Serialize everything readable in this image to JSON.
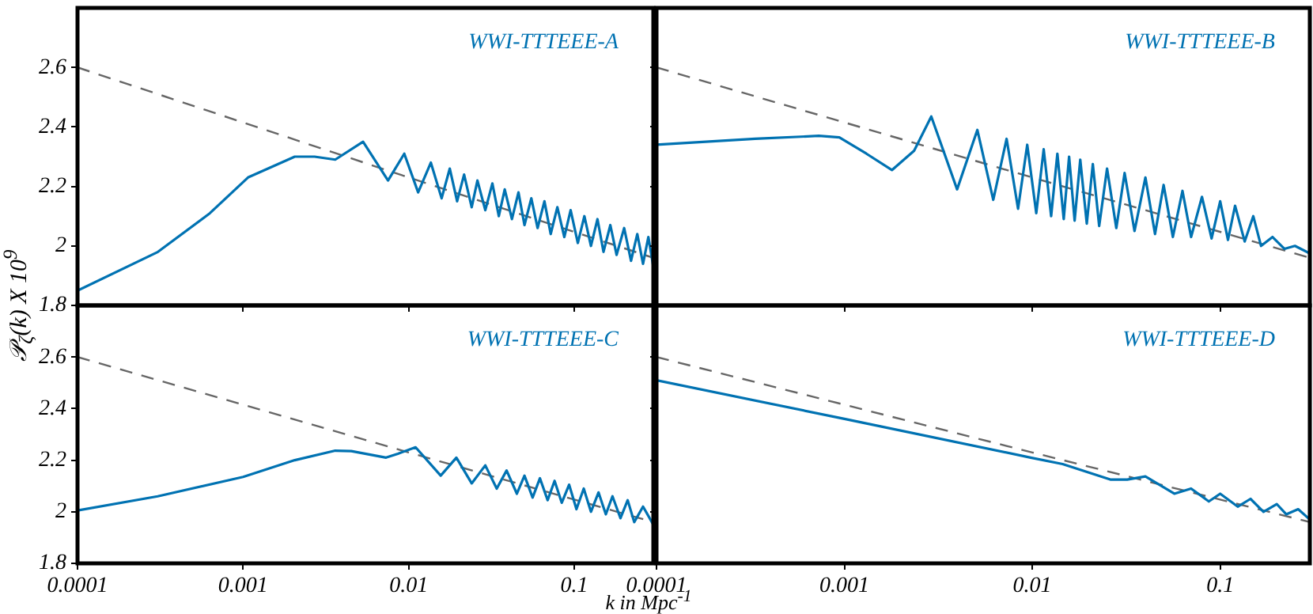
{
  "chart_data": [
    {
      "type": "line",
      "ylabel": "𝒫$_{ζ}$(k) X 10$^{9}$",
      "log": "x",
      "xlim": [
        0.0001,
        0.3
      ],
      "ylim": [
        1.8,
        2.8
      ],
      "xticks": [
        0.0001,
        0.001,
        0.01,
        0.1
      ],
      "yticks": [
        1.8,
        2,
        2.2,
        2.4,
        2.6
      ],
      "tick_labels": "y",
      "series": [
        {
          "name": "WWI-TTTEEE-A",
          "color": "#0072b2",
          "x": [
            0.0001,
            0.000306,
            0.00063,
            0.00107,
            0.00205,
            0.0027,
            0.0036,
            0.0053,
            0.0075,
            0.0094,
            0.0114,
            0.0136,
            0.0158,
            0.0177,
            0.0196,
            0.0216,
            0.024,
            0.026,
            0.029,
            0.032,
            0.035,
            0.038,
            0.042,
            0.046,
            0.05,
            0.055,
            0.06,
            0.066,
            0.072,
            0.079,
            0.087,
            0.095,
            0.105,
            0.115,
            0.126,
            0.138,
            0.15,
            0.165,
            0.18,
            0.2,
            0.22,
            0.24,
            0.26,
            0.28,
            0.3
          ],
          "values": [
            1.85,
            1.98,
            2.11,
            2.23,
            2.3,
            2.3,
            2.29,
            2.35,
            2.22,
            2.31,
            2.18,
            2.28,
            2.16,
            2.26,
            2.15,
            2.24,
            2.13,
            2.22,
            2.12,
            2.21,
            2.1,
            2.19,
            2.09,
            2.18,
            2.07,
            2.16,
            2.06,
            2.15,
            2.04,
            2.13,
            2.03,
            2.12,
            2.01,
            2.1,
            2,
            2.09,
            1.98,
            2.07,
            1.97,
            2.06,
            1.95,
            2.04,
            1.94,
            2.03,
            1.93
          ]
        },
        {
          "color": "#666666",
          "line_style": "dashed",
          "x": [
            0.0001,
            0.01,
            0.3
          ],
          "values": [
            2.6,
            2.23,
            1.96
          ]
        }
      ]
    },
    {
      "type": "line",
      "log": "x",
      "xlim": [
        0.0001,
        0.3
      ],
      "ylim": [
        1.8,
        2.8
      ],
      "xticks": [
        0.0001,
        0.001,
        0.01,
        0.1
      ],
      "yticks": [
        1.8,
        2,
        2.2,
        2.4,
        2.6
      ],
      "tick_labels": false,
      "series": [
        {
          "name": "WWI-TTTEEE-B",
          "color": "#0072b2",
          "x": [
            0.0001,
            0.000335,
            0.00073,
            0.00094,
            0.00131,
            0.00179,
            0.00235,
            0.0029,
            0.00398,
            0.0051,
            0.0062,
            0.0073,
            0.0084,
            0.0094,
            0.0105,
            0.0115,
            0.0126,
            0.0136,
            0.0147,
            0.0157,
            0.0168,
            0.018,
            0.0195,
            0.021,
            0.0227,
            0.025,
            0.028,
            0.031,
            0.035,
            0.04,
            0.045,
            0.05,
            0.056,
            0.063,
            0.07,
            0.08,
            0.09,
            0.1,
            0.11,
            0.12,
            0.135,
            0.15,
            0.165,
            0.19,
            0.22,
            0.25,
            0.3
          ],
          "values": [
            2.34,
            2.36,
            2.37,
            2.365,
            2.31,
            2.255,
            2.32,
            2.435,
            2.19,
            2.39,
            2.155,
            2.36,
            2.125,
            2.34,
            2.11,
            2.325,
            2.1,
            2.31,
            2.09,
            2.3,
            2.085,
            2.29,
            2.075,
            2.275,
            2.067,
            2.26,
            2.06,
            2.245,
            2.05,
            2.23,
            2.04,
            2.205,
            2.03,
            2.185,
            2.03,
            2.165,
            2.025,
            2.15,
            2.02,
            2.135,
            2.015,
            2.1,
            2,
            2.03,
            1.99,
            2,
            1.975
          ]
        },
        {
          "color": "#666666",
          "line_style": "dashed",
          "x": [
            0.0001,
            0.01,
            0.3
          ],
          "values": [
            2.6,
            2.23,
            1.96
          ]
        }
      ]
    },
    {
      "type": "line",
      "xlabel": "k in Mpc$^{-1}$",
      "log": "x",
      "xlim": [
        0.0001,
        0.3
      ],
      "ylim": [
        1.8,
        2.8
      ],
      "xticks": [
        0.0001,
        0.001,
        0.01,
        0.1
      ],
      "yticks": [
        1.8,
        2,
        2.2,
        2.4,
        2.6
      ],
      "series": [
        {
          "name": "WWI-TTTEEE-C",
          "color": "#0072b2",
          "x": [
            0.0001,
            0.000305,
            0.001,
            0.00205,
            0.0036,
            0.0045,
            0.0073,
            0.0086,
            0.011,
            0.0156,
            0.0194,
            0.024,
            0.029,
            0.034,
            0.039,
            0.045,
            0.05,
            0.056,
            0.062,
            0.069,
            0.076,
            0.084,
            0.093,
            0.103,
            0.114,
            0.126,
            0.14,
            0.155,
            0.17,
            0.19,
            0.21,
            0.23,
            0.26,
            0.3
          ],
          "values": [
            2.005,
            2.06,
            2.135,
            2.2,
            2.237,
            2.235,
            2.21,
            2.225,
            2.25,
            2.14,
            2.21,
            2.11,
            2.18,
            2.09,
            2.16,
            2.07,
            2.14,
            2.055,
            2.13,
            2.045,
            2.12,
            2.035,
            2.105,
            2.01,
            2.09,
            2,
            2.075,
            1.99,
            2.06,
            1.975,
            2.045,
            1.96,
            2.02,
            1.95
          ]
        },
        {
          "color": "#666666",
          "line_style": "dashed",
          "x": [
            0.0001,
            0.01,
            0.3
          ],
          "values": [
            2.6,
            2.23,
            1.96
          ]
        }
      ]
    },
    {
      "type": "line",
      "log": "x",
      "xlim": [
        0.0001,
        0.3
      ],
      "ylim": [
        1.8,
        2.8
      ],
      "xticks": [
        0.0001,
        0.001,
        0.01,
        0.1
      ],
      "yticks": [
        1.8,
        2,
        2.2,
        2.4,
        2.6
      ],
      "tick_labels": "x",
      "series": [
        {
          "name": "WWI-TTTEEE-D",
          "color": "#0072b2",
          "x": [
            0.0001,
            0.001,
            0.0098,
            0.0145,
            0.026,
            0.032,
            0.04,
            0.057,
            0.07,
            0.087,
            0.1,
            0.124,
            0.145,
            0.17,
            0.2,
            0.225,
            0.26,
            0.3
          ],
          "values": [
            2.51,
            2.36,
            2.21,
            2.185,
            2.125,
            2.125,
            2.137,
            2.07,
            2.09,
            2.04,
            2.07,
            2.02,
            2.05,
            2,
            2.03,
            1.99,
            2.01,
            1.97
          ]
        },
        {
          "color": "#666666",
          "line_style": "dashed",
          "x": [
            0.0001,
            0.01,
            0.3
          ],
          "values": [
            2.6,
            2.23,
            1.96
          ]
        }
      ]
    }
  ]
}
